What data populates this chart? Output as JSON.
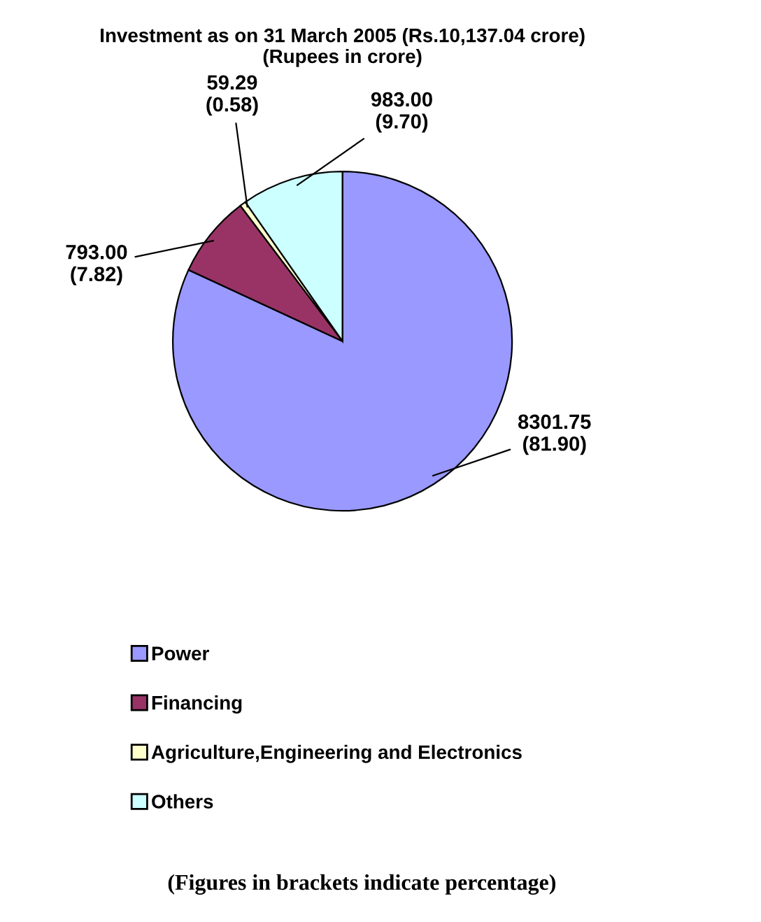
{
  "chart_data": {
    "type": "pie",
    "title": "Investment as on 31 March 2005 (Rs.10,137.04 crore)\n(Rupees in crore)",
    "categories": [
      "Power",
      "Financing",
      "Agriculture,Engineering and Electronics",
      "Others"
    ],
    "values": [
      8301.75,
      793.0,
      59.29,
      983.0
    ],
    "colors": [
      "#9999ff",
      "#993366",
      "#ffffcc",
      "#ccffff"
    ],
    "value_labels": [
      "8301.75\n(81.90)",
      "793.00\n(7.82)",
      "59.29\n(0.58)",
      "983.00\n(9.70)"
    ],
    "legend": "bottom",
    "annotations": [
      "(Figures in brackets indicate percentage)"
    ]
  }
}
